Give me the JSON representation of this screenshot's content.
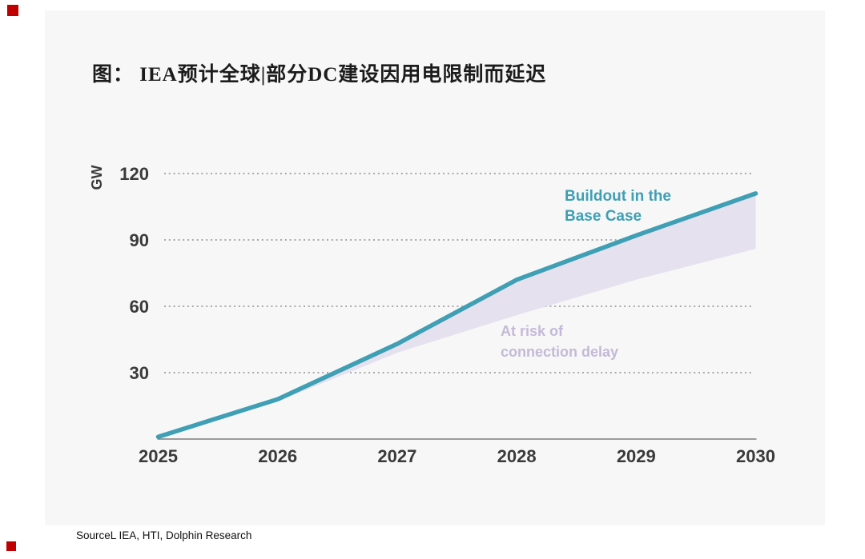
{
  "title": "图： IEA预计全球|部分DC建设因用电限制而延迟",
  "source": "SourceL IEA, HTI, Dolphin Research",
  "colors": {
    "line": "#3F9FB4",
    "area": "#E5E1EE",
    "base_case_label": "#3F9FB4",
    "at_risk_label": "#C4BAD8",
    "red_marker": "#C00000",
    "panel_background": "#F7F7F7",
    "gridline": "#A9A9A9",
    "axis_line": "#7D7D7D",
    "tick_text": "#3A3A3A"
  },
  "annotations": {
    "base_case": {
      "line1": "Buildout in the",
      "line2": "Base Case"
    },
    "at_risk": {
      "line1": "At risk of",
      "line2": "connection delay"
    }
  },
  "chart_data": {
    "type": "area",
    "title": "图： IEA预计全球|部分DC建设因用电限制而延迟",
    "x": [
      2025,
      2026,
      2027,
      2028,
      2029,
      2030
    ],
    "series": [
      {
        "name": "Buildout in the Base Case",
        "type": "line",
        "values": [
          1,
          18,
          43,
          72,
          92,
          111
        ],
        "color": "#3F9FB4"
      },
      {
        "name": "At risk of connection delay (lower bound of delayed buildout)",
        "type": "area-lower-bound",
        "values": [
          1,
          17,
          39,
          56,
          72,
          86
        ],
        "color": "#E5E1EE"
      }
    ],
    "xlabel": "",
    "ylabel": "GW",
    "yticks": [
      30,
      60,
      90,
      120
    ],
    "ylim": [
      0,
      130
    ],
    "grid": "horizontal-dotted",
    "legend_position": "annotations-inline"
  }
}
